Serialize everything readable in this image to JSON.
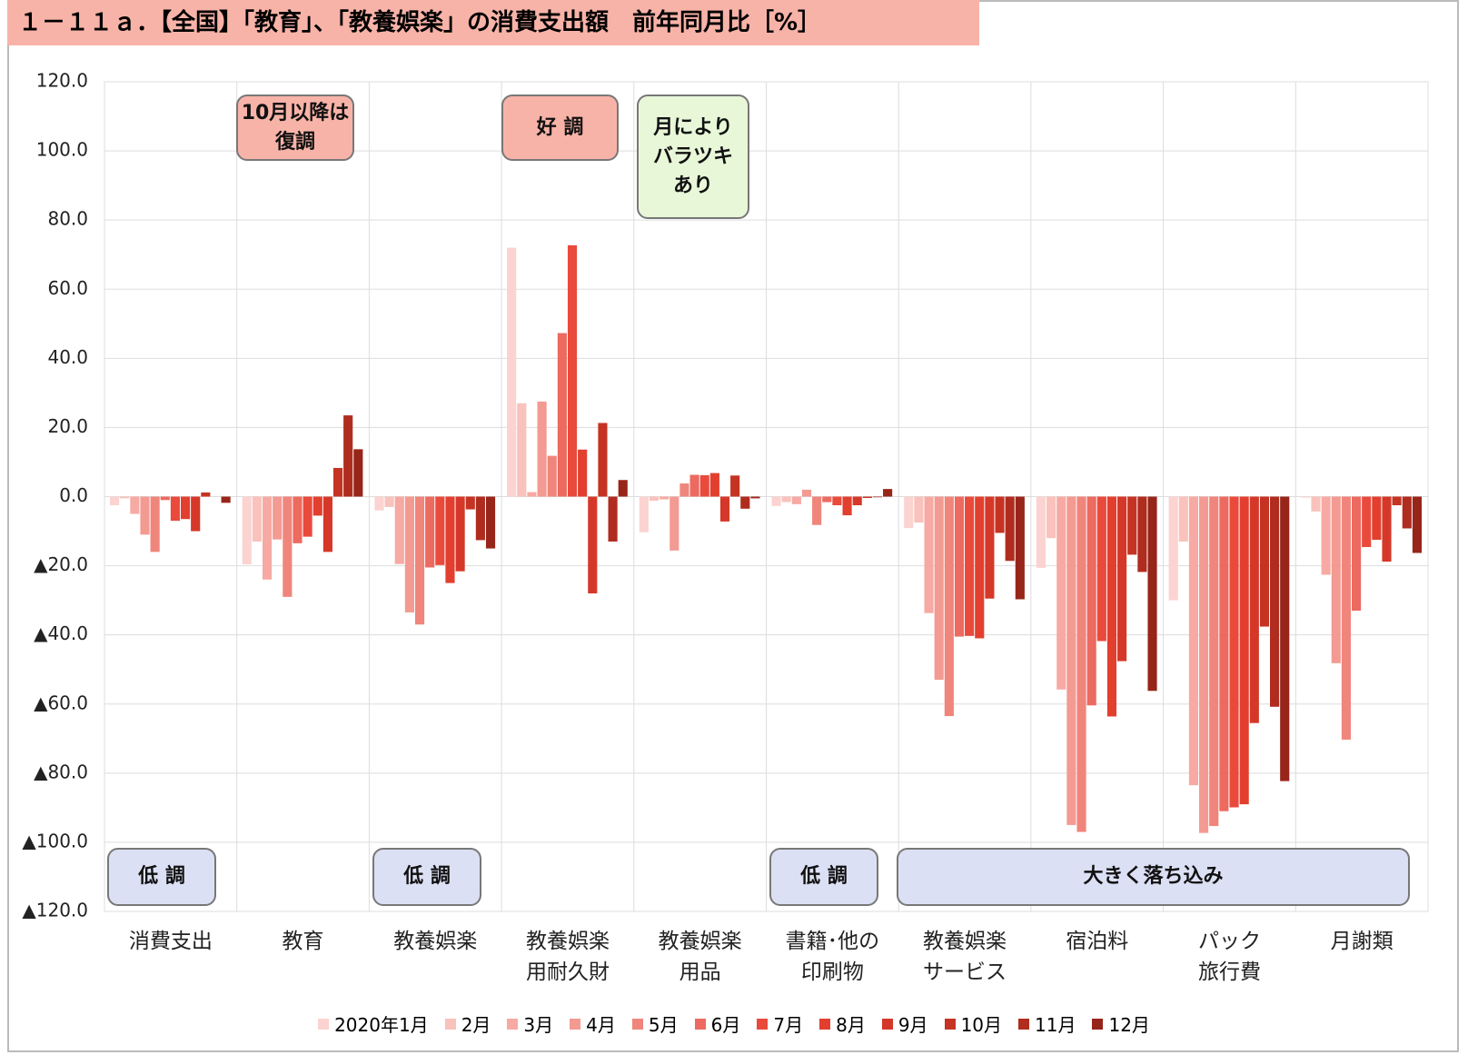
{
  "chart_data": {
    "type": "bar",
    "title": "１－１１ａ．【全国】「教育」、「教養娯楽」の消費支出額　前年同月比［%］",
    "categories": [
      "消費支出",
      "教育",
      "教養娯楽",
      "教養娯楽\n用耐久財",
      "教養娯楽\n用品",
      "書籍･他の\n印刷物",
      "教養娯楽\nサービス",
      "宿泊料",
      "パック\n旅行費",
      "月謝類"
    ],
    "series": [
      {
        "name": "2020年1月",
        "color": "#fbd3d0",
        "values": [
          -2.5,
          -19.6,
          -4,
          72,
          -10.3,
          -2.7,
          -9.1,
          -20.6,
          -30,
          -0.3
        ]
      },
      {
        "name": "2月",
        "color": "#f9c2bc",
        "values": [
          -0.5,
          -13,
          -3,
          27,
          -1.2,
          -1.6,
          -7.5,
          -12,
          -13,
          -4.3
        ]
      },
      {
        "name": "3月",
        "color": "#f6aaa3",
        "values": [
          -5,
          -24,
          -19.5,
          1.3,
          -0.8,
          -2.2,
          -33.7,
          -55.8,
          -83.5,
          -22.6
        ]
      },
      {
        "name": "4月",
        "color": "#f39a92",
        "values": [
          -11,
          -12.4,
          -33.5,
          27.5,
          -15.6,
          2,
          -53,
          -95,
          -97.3,
          -48.2
        ]
      },
      {
        "name": "5月",
        "color": "#f0857c",
        "values": [
          -16,
          -29,
          -37,
          11.8,
          3.8,
          -8.2,
          -63.5,
          -97,
          -95.3,
          -70.3
        ]
      },
      {
        "name": "6月",
        "color": "#ec6a5f",
        "values": [
          -1,
          -13.5,
          -20.5,
          47.3,
          6.3,
          -1.6,
          -40.5,
          -60.4,
          -91,
          -33
        ]
      },
      {
        "name": "7月",
        "color": "#e94a3c",
        "values": [
          -7,
          -11.6,
          -19.8,
          72.7,
          6.2,
          -2.5,
          -40.3,
          -41.8,
          -89.9,
          -14.6
        ]
      },
      {
        "name": "8月",
        "color": "#e23f2e",
        "values": [
          -6.5,
          -5.5,
          -25,
          13.6,
          6.8,
          -5.4,
          -41,
          -63.6,
          -89,
          -12.5
        ]
      },
      {
        "name": "9月",
        "color": "#d53828",
        "values": [
          -10,
          -16,
          -21.6,
          -28,
          -7.2,
          -2.5,
          -29.5,
          -47.6,
          -65.5,
          -18.8
        ]
      },
      {
        "name": "10月",
        "color": "#c53323",
        "values": [
          1.2,
          8.3,
          -3.7,
          21.3,
          6.1,
          -0.4,
          -10.5,
          -16.8,
          -37.6,
          -2.5
        ]
      },
      {
        "name": "11月",
        "color": "#b02c1f",
        "values": [
          0,
          23.5,
          -12.6,
          -13,
          -3.5,
          -0.2,
          -18.6,
          -21.8,
          -60.8,
          -9.2
        ]
      },
      {
        "name": "12月",
        "color": "#972519",
        "values": [
          -1.8,
          13.7,
          -15,
          4.8,
          -0.5,
          2.2,
          -29.7,
          -56.2,
          -82.3,
          -16.3
        ]
      }
    ],
    "ylim": [
      -120,
      120
    ],
    "yticks": [
      {
        "value": 120,
        "label": "120.0"
      },
      {
        "value": 100,
        "label": "100.0"
      },
      {
        "value": 80,
        "label": "80.0"
      },
      {
        "value": 60,
        "label": "60.0"
      },
      {
        "value": 40,
        "label": "40.0"
      },
      {
        "value": 20,
        "label": "20.0"
      },
      {
        "value": 0,
        "label": "0.0"
      },
      {
        "value": -20,
        "label": "▲20.0"
      },
      {
        "value": -40,
        "label": "▲40.0"
      },
      {
        "value": -60,
        "label": "▲60.0"
      },
      {
        "value": -80,
        "label": "▲80.0"
      },
      {
        "value": -100,
        "label": "▲100.0"
      },
      {
        "value": -120,
        "label": "▲120.0"
      }
    ],
    "grid": true,
    "annotations": [
      "10月以降は\n復調",
      "好 調",
      "月により\nバラツキ\nあり",
      "低 調",
      "低 調",
      "低 調",
      "大きく落ち込み"
    ]
  }
}
